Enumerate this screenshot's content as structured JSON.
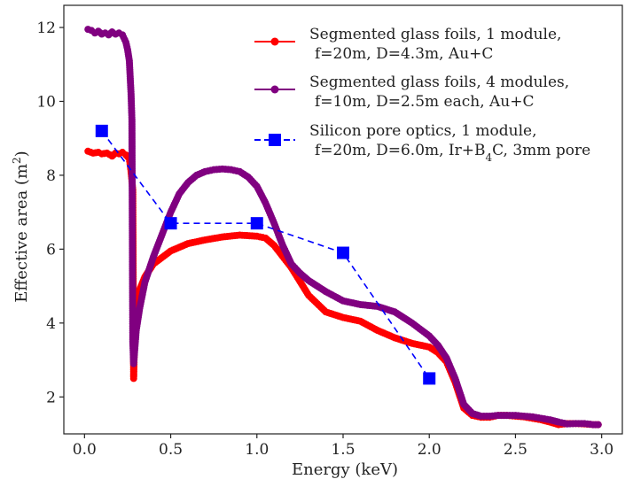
{
  "chart_data": {
    "type": "line",
    "xlabel": "Energy (keV)",
    "ylabel_main": "Effective area (m",
    "ylabel_sup": "2",
    "ylabel_close": ")",
    "xlim": [
      -0.12,
      3.12
    ],
    "ylim": [
      1.0,
      12.6
    ],
    "x_ticks": [
      0.0,
      0.5,
      1.0,
      1.5,
      2.0,
      2.5,
      3.0
    ],
    "x_tick_labels": [
      "0.0",
      "0.5",
      "1.0",
      "1.5",
      "2.0",
      "2.5",
      "3.0"
    ],
    "y_ticks": [
      2,
      4,
      6,
      8,
      10,
      12
    ],
    "y_tick_labels": [
      "2",
      "4",
      "6",
      "8",
      "10",
      "12"
    ],
    "grid": false,
    "legend_position": "top-right",
    "series": [
      {
        "legend_line1": "Segmented glass foils, 1 module,",
        "legend_line2": "f=20m, D=4.3m, Au+C",
        "color": "#ff0000",
        "marker": "circle",
        "linestyle": "solid",
        "x": [
          0.02,
          0.05,
          0.08,
          0.1,
          0.13,
          0.16,
          0.18,
          0.2,
          0.22,
          0.24,
          0.26,
          0.27,
          0.28,
          0.285,
          0.29,
          0.295,
          0.3,
          0.32,
          0.35,
          0.4,
          0.5,
          0.6,
          0.7,
          0.8,
          0.9,
          1.0,
          1.05,
          1.1,
          1.2,
          1.3,
          1.4,
          1.5,
          1.6,
          1.7,
          1.8,
          1.9,
          2.0,
          2.05,
          2.1,
          2.15,
          2.2,
          2.25,
          2.3,
          2.35,
          2.4,
          2.45,
          2.5,
          2.55,
          2.6,
          2.65,
          2.7,
          2.75,
          2.8,
          2.85,
          2.9,
          2.95,
          2.98
        ],
        "y": [
          8.65,
          8.6,
          8.62,
          8.58,
          8.6,
          8.52,
          8.6,
          8.58,
          8.62,
          8.55,
          8.45,
          8.1,
          7.6,
          2.5,
          3.5,
          4.0,
          4.5,
          4.9,
          5.25,
          5.6,
          5.95,
          6.15,
          6.25,
          6.33,
          6.38,
          6.35,
          6.3,
          6.1,
          5.5,
          4.75,
          4.3,
          4.15,
          4.05,
          3.8,
          3.6,
          3.45,
          3.35,
          3.2,
          2.95,
          2.4,
          1.7,
          1.5,
          1.45,
          1.45,
          1.5,
          1.5,
          1.48,
          1.46,
          1.42,
          1.38,
          1.32,
          1.25,
          1.28,
          1.28,
          1.27,
          1.25,
          1.25
        ]
      },
      {
        "legend_line1": "Segmented glass foils, 4 modules,",
        "legend_line2": "f=10m, D=2.5m each, Au+C",
        "color": "#800080",
        "marker": "circle",
        "linestyle": "solid",
        "x": [
          0.02,
          0.04,
          0.06,
          0.08,
          0.1,
          0.12,
          0.14,
          0.16,
          0.18,
          0.2,
          0.22,
          0.24,
          0.25,
          0.26,
          0.27,
          0.275,
          0.28,
          0.285,
          0.29,
          0.3,
          0.32,
          0.35,
          0.4,
          0.45,
          0.5,
          0.55,
          0.6,
          0.65,
          0.7,
          0.75,
          0.8,
          0.85,
          0.9,
          0.95,
          1.0,
          1.05,
          1.1,
          1.15,
          1.2,
          1.25,
          1.3,
          1.4,
          1.5,
          1.6,
          1.7,
          1.8,
          1.9,
          2.0,
          2.05,
          2.1,
          2.15,
          2.2,
          2.25,
          2.3,
          2.35,
          2.4,
          2.45,
          2.5,
          2.55,
          2.6,
          2.65,
          2.7,
          2.75,
          2.8,
          2.85,
          2.9,
          2.95,
          2.98
        ],
        "y": [
          11.95,
          11.92,
          11.85,
          11.9,
          11.82,
          11.85,
          11.8,
          11.88,
          11.82,
          11.85,
          11.8,
          11.6,
          11.4,
          11.1,
          10.2,
          9.5,
          3.5,
          2.9,
          3.2,
          3.8,
          4.4,
          5.1,
          5.8,
          6.4,
          7.0,
          7.5,
          7.8,
          8.0,
          8.1,
          8.15,
          8.17,
          8.15,
          8.1,
          7.95,
          7.7,
          7.25,
          6.7,
          6.1,
          5.6,
          5.35,
          5.15,
          4.85,
          4.6,
          4.5,
          4.45,
          4.3,
          4.0,
          3.65,
          3.4,
          3.05,
          2.5,
          1.8,
          1.55,
          1.48,
          1.48,
          1.5,
          1.5,
          1.5,
          1.48,
          1.46,
          1.42,
          1.38,
          1.32,
          1.27,
          1.28,
          1.28,
          1.25,
          1.25
        ]
      },
      {
        "legend_line1": "Silicon pore optics, 1 module,",
        "legend_line2": "f=20m, D=6.0m, Ir+B",
        "legend_sub": "4",
        "legend_tail": "C, 3mm pore",
        "color": "#0000ff",
        "marker": "square",
        "linestyle": "dashed",
        "x": [
          0.1,
          0.5,
          1.0,
          1.5,
          2.0
        ],
        "y": [
          9.2,
          6.7,
          6.7,
          5.9,
          2.5
        ]
      }
    ]
  }
}
